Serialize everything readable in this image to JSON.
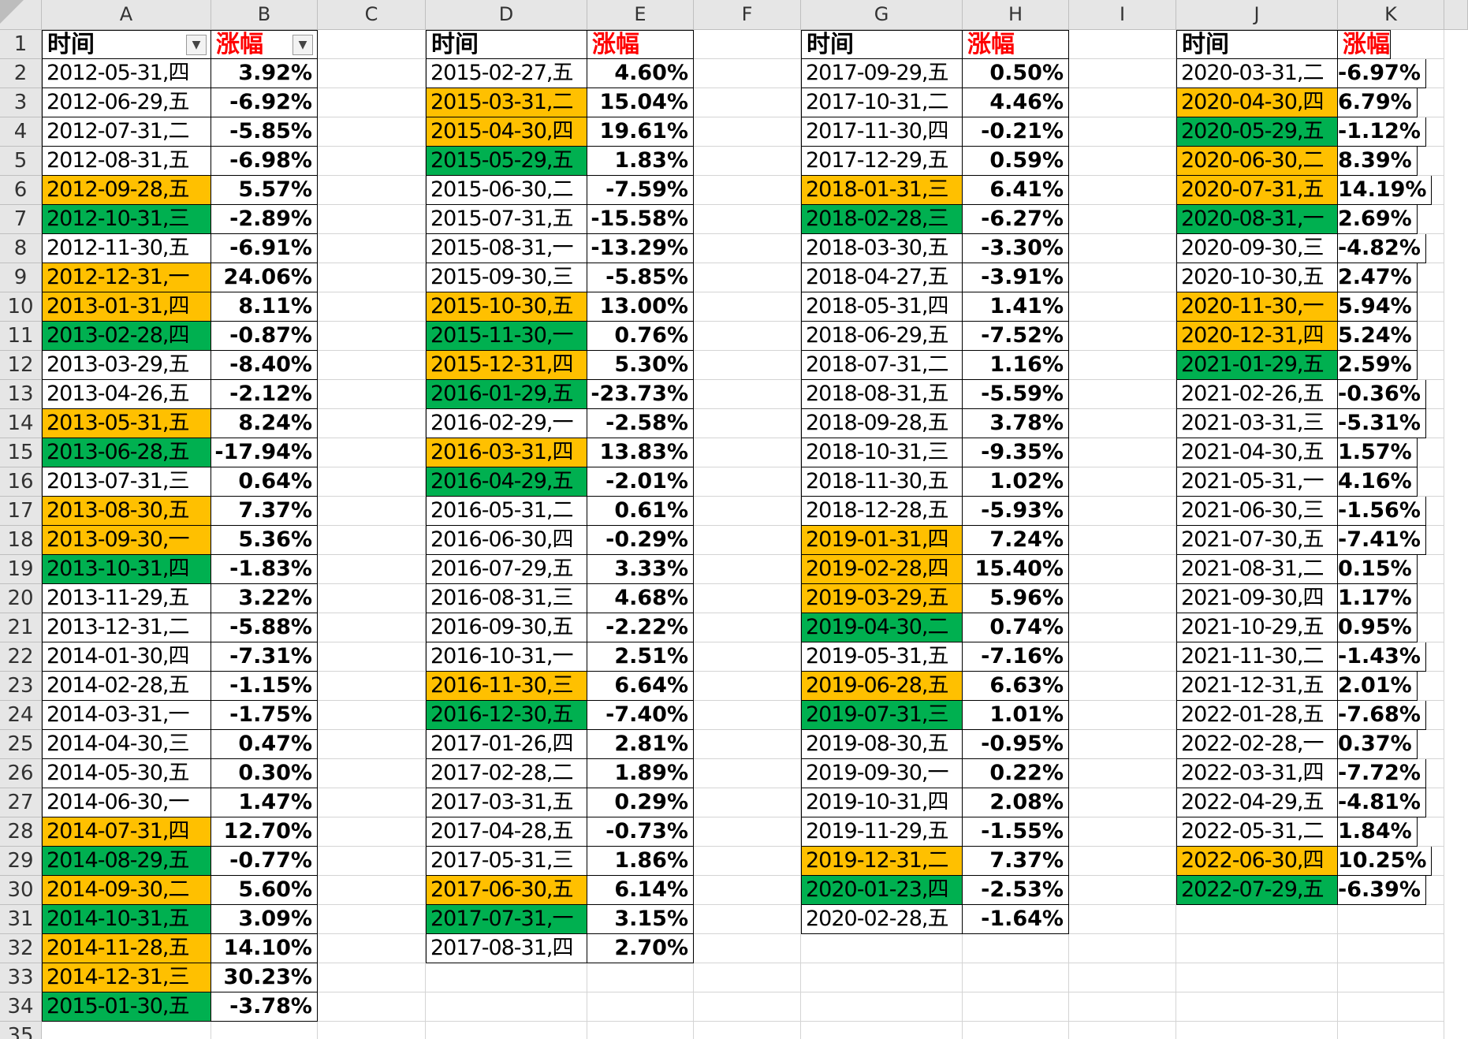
{
  "columns": [
    "A",
    "B",
    "C",
    "D",
    "E",
    "F",
    "G",
    "H",
    "I",
    "J",
    "K"
  ],
  "header_time": "时间",
  "header_change": "涨幅",
  "colors": {
    "up": "#ffc000",
    "down": "#00b050",
    "header_red": "#ff0000"
  },
  "blocks": [
    {
      "date_col": "A",
      "val_col": "B",
      "filter": true,
      "rows": [
        [
          "2012-05-31,四",
          "3.92%",
          ""
        ],
        [
          "2012-06-29,五",
          "-6.92%",
          ""
        ],
        [
          "2012-07-31,二",
          "-5.85%",
          ""
        ],
        [
          "2012-08-31,五",
          "-6.98%",
          ""
        ],
        [
          "2012-09-28,五",
          "5.57%",
          "up"
        ],
        [
          "2012-10-31,三",
          "-2.89%",
          "down"
        ],
        [
          "2012-11-30,五",
          "-6.91%",
          ""
        ],
        [
          "2012-12-31,一",
          "24.06%",
          "up"
        ],
        [
          "2013-01-31,四",
          "8.11%",
          "up"
        ],
        [
          "2013-02-28,四",
          "-0.87%",
          "down"
        ],
        [
          "2013-03-29,五",
          "-8.40%",
          ""
        ],
        [
          "2013-04-26,五",
          "-2.12%",
          ""
        ],
        [
          "2013-05-31,五",
          "8.24%",
          "up"
        ],
        [
          "2013-06-28,五",
          "-17.94%",
          "down"
        ],
        [
          "2013-07-31,三",
          "0.64%",
          ""
        ],
        [
          "2013-08-30,五",
          "7.37%",
          "up"
        ],
        [
          "2013-09-30,一",
          "5.36%",
          "up"
        ],
        [
          "2013-10-31,四",
          "-1.83%",
          "down"
        ],
        [
          "2013-11-29,五",
          "3.22%",
          ""
        ],
        [
          "2013-12-31,二",
          "-5.88%",
          ""
        ],
        [
          "2014-01-30,四",
          "-7.31%",
          ""
        ],
        [
          "2014-02-28,五",
          "-1.15%",
          ""
        ],
        [
          "2014-03-31,一",
          "-1.75%",
          ""
        ],
        [
          "2014-04-30,三",
          "0.47%",
          ""
        ],
        [
          "2014-05-30,五",
          "0.30%",
          ""
        ],
        [
          "2014-06-30,一",
          "1.47%",
          ""
        ],
        [
          "2014-07-31,四",
          "12.70%",
          "up"
        ],
        [
          "2014-08-29,五",
          "-0.77%",
          "down"
        ],
        [
          "2014-09-30,二",
          "5.60%",
          "up"
        ],
        [
          "2014-10-31,五",
          "3.09%",
          "down"
        ],
        [
          "2014-11-28,五",
          "14.10%",
          "up"
        ],
        [
          "2014-12-31,三",
          "30.23%",
          "up"
        ],
        [
          "2015-01-30,五",
          "-3.78%",
          "down"
        ]
      ]
    },
    {
      "date_col": "D",
      "val_col": "E",
      "filter": false,
      "rows": [
        [
          "2015-02-27,五",
          "4.60%",
          ""
        ],
        [
          "2015-03-31,二",
          "15.04%",
          "up"
        ],
        [
          "2015-04-30,四",
          "19.61%",
          "up"
        ],
        [
          "2015-05-29,五",
          "1.83%",
          "down"
        ],
        [
          "2015-06-30,二",
          "-7.59%",
          ""
        ],
        [
          "2015-07-31,五",
          "-15.58%",
          ""
        ],
        [
          "2015-08-31,一",
          "-13.29%",
          ""
        ],
        [
          "2015-09-30,三",
          "-5.85%",
          ""
        ],
        [
          "2015-10-30,五",
          "13.00%",
          "up"
        ],
        [
          "2015-11-30,一",
          "0.76%",
          "down"
        ],
        [
          "2015-12-31,四",
          "5.30%",
          "up"
        ],
        [
          "2016-01-29,五",
          "-23.73%",
          "down"
        ],
        [
          "2016-02-29,一",
          "-2.58%",
          ""
        ],
        [
          "2016-03-31,四",
          "13.83%",
          "up"
        ],
        [
          "2016-04-29,五",
          "-2.01%",
          "down"
        ],
        [
          "2016-05-31,二",
          "0.61%",
          ""
        ],
        [
          "2016-06-30,四",
          "-0.29%",
          ""
        ],
        [
          "2016-07-29,五",
          "3.33%",
          ""
        ],
        [
          "2016-08-31,三",
          "4.68%",
          ""
        ],
        [
          "2016-09-30,五",
          "-2.22%",
          ""
        ],
        [
          "2016-10-31,一",
          "2.51%",
          ""
        ],
        [
          "2016-11-30,三",
          "6.64%",
          "up"
        ],
        [
          "2016-12-30,五",
          "-7.40%",
          "down"
        ],
        [
          "2017-01-26,四",
          "2.81%",
          ""
        ],
        [
          "2017-02-28,二",
          "1.89%",
          ""
        ],
        [
          "2017-03-31,五",
          "0.29%",
          ""
        ],
        [
          "2017-04-28,五",
          "-0.73%",
          ""
        ],
        [
          "2017-05-31,三",
          "1.86%",
          ""
        ],
        [
          "2017-06-30,五",
          "6.14%",
          "up"
        ],
        [
          "2017-07-31,一",
          "3.15%",
          "down"
        ],
        [
          "2017-08-31,四",
          "2.70%",
          ""
        ]
      ]
    },
    {
      "date_col": "G",
      "val_col": "H",
      "filter": false,
      "rows": [
        [
          "2017-09-29,五",
          "0.50%",
          ""
        ],
        [
          "2017-10-31,二",
          "4.46%",
          ""
        ],
        [
          "2017-11-30,四",
          "-0.21%",
          ""
        ],
        [
          "2017-12-29,五",
          "0.59%",
          ""
        ],
        [
          "2018-01-31,三",
          "6.41%",
          "up"
        ],
        [
          "2018-02-28,三",
          "-6.27%",
          "down"
        ],
        [
          "2018-03-30,五",
          "-3.30%",
          ""
        ],
        [
          "2018-04-27,五",
          "-3.91%",
          ""
        ],
        [
          "2018-05-31,四",
          "1.41%",
          ""
        ],
        [
          "2018-06-29,五",
          "-7.52%",
          ""
        ],
        [
          "2018-07-31,二",
          "1.16%",
          ""
        ],
        [
          "2018-08-31,五",
          "-5.59%",
          ""
        ],
        [
          "2018-09-28,五",
          "3.78%",
          ""
        ],
        [
          "2018-10-31,三",
          "-9.35%",
          ""
        ],
        [
          "2018-11-30,五",
          "1.02%",
          ""
        ],
        [
          "2018-12-28,五",
          "-5.93%",
          ""
        ],
        [
          "2019-01-31,四",
          "7.24%",
          "up"
        ],
        [
          "2019-02-28,四",
          "15.40%",
          "up"
        ],
        [
          "2019-03-29,五",
          "5.96%",
          "up"
        ],
        [
          "2019-04-30,二",
          "0.74%",
          "down"
        ],
        [
          "2019-05-31,五",
          "-7.16%",
          ""
        ],
        [
          "2019-06-28,五",
          "6.63%",
          "up"
        ],
        [
          "2019-07-31,三",
          "1.01%",
          "down"
        ],
        [
          "2019-08-30,五",
          "-0.95%",
          ""
        ],
        [
          "2019-09-30,一",
          "0.22%",
          ""
        ],
        [
          "2019-10-31,四",
          "2.08%",
          ""
        ],
        [
          "2019-11-29,五",
          "-1.55%",
          ""
        ],
        [
          "2019-12-31,二",
          "7.37%",
          "up"
        ],
        [
          "2020-01-23,四",
          "-2.53%",
          "down"
        ],
        [
          "2020-02-28,五",
          "-1.64%",
          ""
        ]
      ]
    },
    {
      "date_col": "J",
      "val_col": "K",
      "filter": false,
      "rows": [
        [
          "2020-03-31,二",
          "-6.97%",
          ""
        ],
        [
          "2020-04-30,四",
          "6.79%",
          "up"
        ],
        [
          "2020-05-29,五",
          "-1.12%",
          "down"
        ],
        [
          "2020-06-30,二",
          "8.39%",
          "up"
        ],
        [
          "2020-07-31,五",
          "14.19%",
          "up"
        ],
        [
          "2020-08-31,一",
          "2.69%",
          "down"
        ],
        [
          "2020-09-30,三",
          "-4.82%",
          ""
        ],
        [
          "2020-10-30,五",
          "2.47%",
          ""
        ],
        [
          "2020-11-30,一",
          "5.94%",
          "up"
        ],
        [
          "2020-12-31,四",
          "5.24%",
          "up"
        ],
        [
          "2021-01-29,五",
          "2.59%",
          "down"
        ],
        [
          "2021-02-26,五",
          "-0.36%",
          ""
        ],
        [
          "2021-03-31,三",
          "-5.31%",
          ""
        ],
        [
          "2021-04-30,五",
          "1.57%",
          ""
        ],
        [
          "2021-05-31,一",
          "4.16%",
          ""
        ],
        [
          "2021-06-30,三",
          "-1.56%",
          ""
        ],
        [
          "2021-07-30,五",
          "-7.41%",
          ""
        ],
        [
          "2021-08-31,二",
          "0.15%",
          ""
        ],
        [
          "2021-09-30,四",
          "1.17%",
          ""
        ],
        [
          "2021-10-29,五",
          "0.95%",
          ""
        ],
        [
          "2021-11-30,二",
          "-1.43%",
          ""
        ],
        [
          "2021-12-31,五",
          "2.01%",
          ""
        ],
        [
          "2022-01-28,五",
          "-7.68%",
          ""
        ],
        [
          "2022-02-28,一",
          "0.37%",
          ""
        ],
        [
          "2022-03-31,四",
          "-7.72%",
          ""
        ],
        [
          "2022-04-29,五",
          "-4.81%",
          ""
        ],
        [
          "2022-05-31,二",
          "1.84%",
          ""
        ],
        [
          "2022-06-30,四",
          "10.25%",
          "up"
        ],
        [
          "2022-07-29,五",
          "-6.39%",
          "down"
        ]
      ]
    }
  ]
}
